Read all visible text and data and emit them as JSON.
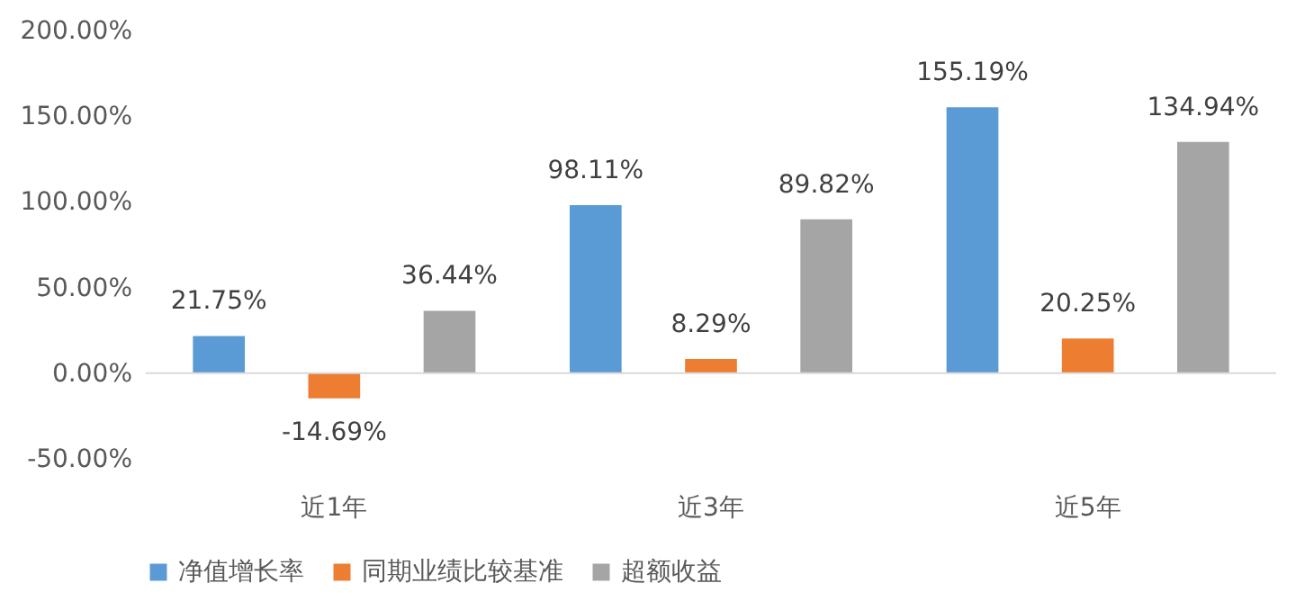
{
  "chart_data": {
    "type": "bar",
    "categories": [
      "近1年",
      "近3年",
      "近5年"
    ],
    "series": [
      {
        "name": "净值增长率",
        "color": "#5b9bd5",
        "values": [
          21.75,
          98.11,
          155.19
        ],
        "value_labels": [
          "21.75%",
          "98.11%",
          "155.19%"
        ]
      },
      {
        "name": "同期业绩比较基准",
        "color": "#ed7d31",
        "values": [
          -14.69,
          8.29,
          20.25
        ],
        "value_labels": [
          "-14.69%",
          "8.29%",
          "20.25%"
        ]
      },
      {
        "name": "超额收益",
        "color": "#a5a5a5",
        "values": [
          36.44,
          89.82,
          134.94
        ],
        "value_labels": [
          "36.44%",
          "89.82%",
          "134.94%"
        ]
      }
    ],
    "ylim": [
      -50,
      200
    ],
    "yticks": [
      {
        "value": -50,
        "label": "-50.00%"
      },
      {
        "value": 0,
        "label": "0.00%"
      },
      {
        "value": 50,
        "label": "50.00%"
      },
      {
        "value": 100,
        "label": "100.00%"
      },
      {
        "value": 150,
        "label": "150.00%"
      },
      {
        "value": 200,
        "label": "200.00%"
      }
    ],
    "ref_lines": [
      {
        "axis": "y",
        "value": 0,
        "color": "#d9d9d9"
      }
    ],
    "grid": false,
    "legend": "bottom"
  }
}
